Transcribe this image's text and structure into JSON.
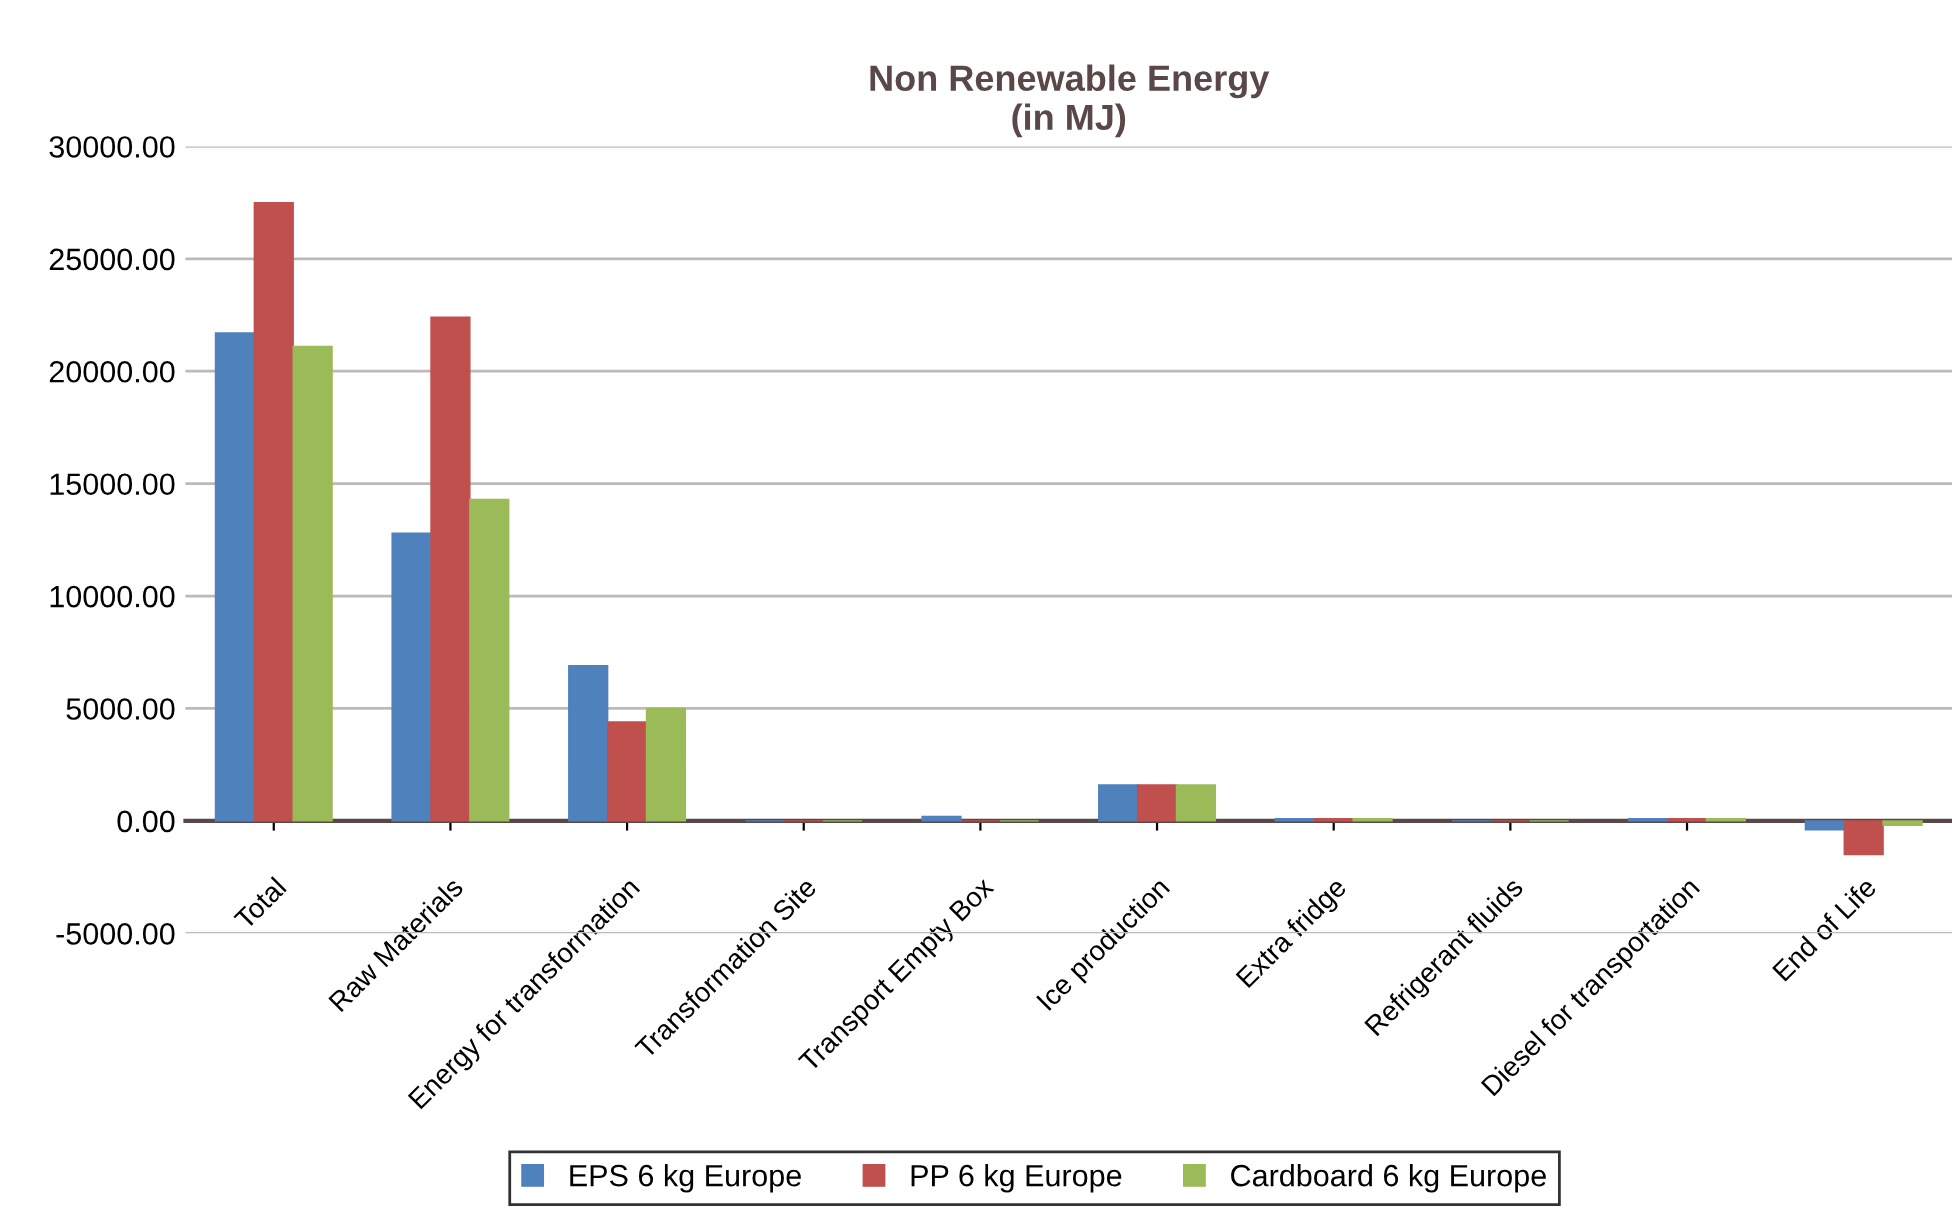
{
  "chart_data": {
    "type": "bar",
    "title": "Non Renewable Energy\n(in MJ)",
    "categories": [
      "Total",
      "Raw Materials",
      "Energy for transformation",
      "Transformation Site",
      "Transport Empty Box",
      "Ice production",
      "Extra fridge",
      "Refrigerant fluids",
      "Diesel for transportation",
      "End of Life"
    ],
    "series": [
      {
        "name": "EPS 6 kg Europe",
        "color": "#4f81bd",
        "values": [
          21700,
          12800,
          6900,
          0,
          200,
          1600,
          100,
          0,
          100,
          -400
        ]
      },
      {
        "name": "PP 6 kg Europe",
        "color": "#c0504d",
        "values": [
          27500,
          22400,
          4400,
          0,
          0,
          1600,
          100,
          0,
          100,
          -1500
        ]
      },
      {
        "name": "Cardboard 6 kg Europe",
        "color": "#9bbb59",
        "values": [
          21100,
          14300,
          5000,
          0,
          0,
          1600,
          100,
          0,
          100,
          -200
        ]
      }
    ],
    "ylim": [
      -5000,
      30000
    ],
    "yticks": [
      {
        "value": -5000,
        "label": "-5000.00"
      },
      {
        "value": 0,
        "label": "0.00"
      },
      {
        "value": 5000,
        "label": "5000.00"
      },
      {
        "value": 10000,
        "label": "10000.00"
      },
      {
        "value": 15000,
        "label": "15000.00"
      },
      {
        "value": 20000,
        "label": "20000.00"
      },
      {
        "value": 25000,
        "label": "25000.00"
      },
      {
        "value": 30000,
        "label": "30000.00"
      }
    ],
    "grid": "y",
    "legend": "bottom"
  }
}
